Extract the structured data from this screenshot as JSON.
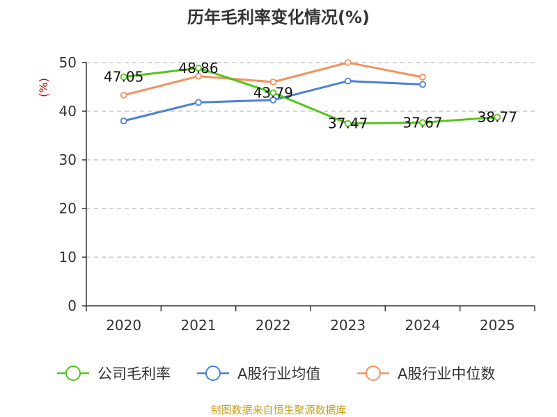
{
  "chart_data": {
    "type": "line",
    "title": "历年毛利率变化情况(%)",
    "ylabel": "(%)",
    "categories": [
      "2020",
      "2021",
      "2022",
      "2023",
      "2024",
      "2025"
    ],
    "ylim": [
      0,
      50
    ],
    "yticks": [
      0,
      10,
      20,
      30,
      40,
      50
    ],
    "grid": true,
    "legend_position": "bottom",
    "series": [
      {
        "name": "公司毛利率",
        "color": "#52c41a",
        "values": [
          47.05,
          48.86,
          43.79,
          37.47,
          37.67,
          38.77
        ],
        "labels": [
          "47.05",
          "48.86",
          "43.79",
          "37.47",
          "37.67",
          "38.77"
        ]
      },
      {
        "name": "A股行业均值",
        "color": "#4a7fd8",
        "values": [
          38.0,
          41.8,
          42.3,
          46.2,
          45.5,
          null
        ]
      },
      {
        "name": "A股行业中位数",
        "color": "#f4915a",
        "values": [
          43.3,
          47.2,
          46.0,
          50.0,
          47.0,
          null
        ]
      }
    ]
  },
  "source": "制图数据来自恒生聚源数据库"
}
